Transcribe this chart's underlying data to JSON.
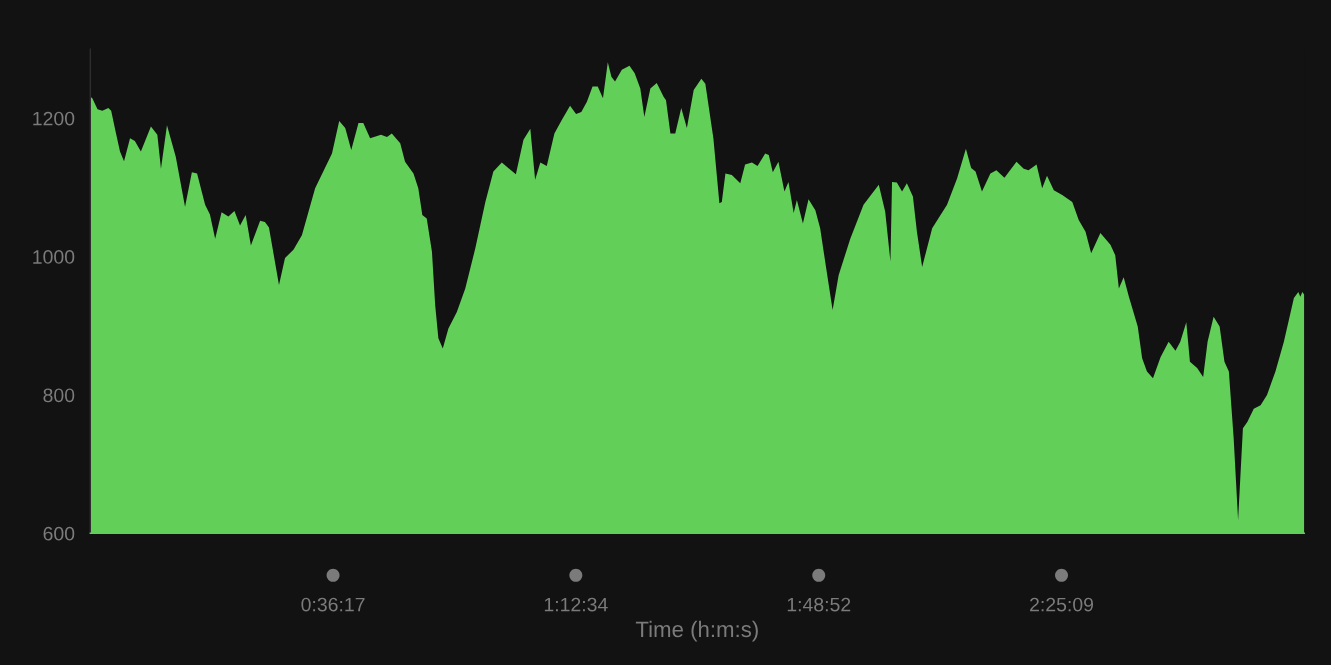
{
  "chart_data": {
    "type": "area",
    "xlabel": "Time (h:m:s)",
    "color": "#61cf58",
    "x": [
      0,
      0.005,
      0.018,
      0.03,
      0.045,
      0.052,
      0.063,
      0.074,
      0.084,
      0.099,
      0.111,
      0.126,
      0.151,
      0.167,
      0.176,
      0.191,
      0.213,
      0.236,
      0.253,
      0.266,
      0.286,
      0.298,
      0.311,
      0.327,
      0.344,
      0.359,
      0.373,
      0.387,
      0.4,
      0.423,
      0.435,
      0.445,
      0.47,
      0.485,
      0.506,
      0.527,
      0.56,
      0.602,
      0.62,
      0.635,
      0.65,
      0.668,
      0.68,
      0.697,
      0.724,
      0.739,
      0.751,
      0.772,
      0.784,
      0.805,
      0.817,
      0.827,
      0.838,
      0.851,
      0.859,
      0.867,
      0.878,
      0.892,
      0.913,
      0.934,
      0.959,
      0.984,
      1.004,
      1.025,
      1.06,
      1.079,
      1.096,
      1.108,
      1.121,
      1.137,
      1.156,
      1.173,
      1.195,
      1.21,
      1.223,
      1.237,
      1.251,
      1.264,
      1.277,
      1.289,
      1.298,
      1.307,
      1.324,
      1.343,
      1.356,
      1.37,
      1.38,
      1.395,
      1.411,
      1.428,
      1.434,
      1.445,
      1.457,
      1.472,
      1.486,
      1.503,
      1.522,
      1.532,
      1.552,
      1.567,
      1.573,
      1.582,
      1.598,
      1.619,
      1.631,
      1.648,
      1.662,
      1.681,
      1.69,
      1.7,
      1.714,
      1.729,
      1.739,
      1.752,
      1.76,
      1.775,
      1.789,
      1.806,
      1.818,
      1.833,
      1.849,
      1.864,
      1.893,
      1.926,
      1.964,
      1.98,
      1.993,
      1.997,
      2.009,
      2.022,
      2.034,
      2.049,
      2.059,
      2.072,
      2.097,
      2.134,
      2.159,
      2.181,
      2.194,
      2.205,
      2.221,
      2.242,
      2.257,
      2.277,
      2.307,
      2.325,
      2.337,
      2.357,
      2.371,
      2.383,
      2.4,
      2.421,
      2.446,
      2.462,
      2.479,
      2.493,
      2.516,
      2.541,
      2.553,
      2.562,
      2.574,
      2.587,
      2.609,
      2.62,
      2.632,
      2.647,
      2.666,
      2.686,
      2.703,
      2.715,
      2.73,
      2.739,
      2.757,
      2.772,
      2.783,
      2.798,
      2.813,
      2.825,
      2.836,
      2.848,
      2.859,
      2.871,
      2.882,
      2.898,
      2.915,
      2.931,
      2.952,
      2.973,
      2.998,
      3.009,
      3.014,
      3.019,
      3.0239
    ],
    "values": [
      1231,
      1229,
      1213,
      1211,
      1215,
      1211,
      1181,
      1152,
      1138,
      1171,
      1167,
      1152,
      1188,
      1176,
      1127,
      1190,
      1144,
      1072,
      1122,
      1120,
      1075,
      1061,
      1026,
      1064,
      1058,
      1066,
      1045,
      1060,
      1016,
      1052,
      1050,
      1042,
      959,
      998,
      1010,
      1031,
      1099,
      1149,
      1196,
      1186,
      1154,
      1193,
      1193,
      1171,
      1176,
      1173,
      1178,
      1164,
      1137,
      1120,
      1099,
      1060,
      1055,
      1007,
      930,
      882,
      867,
      896,
      920,
      954,
      1012,
      1079,
      1123,
      1136,
      1119,
      1169,
      1185,
      1111,
      1136,
      1131,
      1178,
      1196,
      1218,
      1206,
      1209,
      1224,
      1246,
      1246,
      1229,
      1281,
      1260,
      1253,
      1270,
      1276,
      1265,
      1243,
      1202,
      1243,
      1251,
      1231,
      1226,
      1178,
      1178,
      1215,
      1186,
      1241,
      1257,
      1250,
      1171,
      1077,
      1079,
      1120,
      1118,
      1106,
      1133,
      1136,
      1131,
      1149,
      1147,
      1122,
      1137,
      1094,
      1108,
      1063,
      1082,
      1048,
      1083,
      1067,
      1041,
      983,
      923,
      973,
      1026,
      1075,
      1104,
      1065,
      993,
      1108,
      1107,
      1094,
      1106,
      1087,
      1036,
      985,
      1041,
      1075,
      1113,
      1156,
      1128,
      1123,
      1094,
      1120,
      1125,
      1114,
      1137,
      1127,
      1125,
      1133,
      1099,
      1117,
      1096,
      1089,
      1079,
      1053,
      1036,
      1005,
      1034,
      1017,
      1002,
      954,
      970,
      942,
      899,
      853,
      834,
      824,
      855,
      877,
      864,
      877,
      905,
      848,
      839,
      826,
      877,
      913,
      899,
      848,
      834,
      737,
      619,
      752,
      761,
      780,
      785,
      800,
      834,
      877,
      940,
      949,
      942,
      949,
      945
    ],
    "xlim": [
      0,
      3.0239
    ],
    "ylim": [
      600,
      1300
    ],
    "xticks": [
      {
        "value": 0.604722,
        "label": "0:36:17"
      },
      {
        "value": 1.209444,
        "label": "1:12:34"
      },
      {
        "value": 1.814444,
        "label": "1:48:52"
      },
      {
        "value": 2.419167,
        "label": "2:25:09"
      }
    ],
    "yticks": [
      600,
      800,
      1000,
      1200
    ]
  }
}
